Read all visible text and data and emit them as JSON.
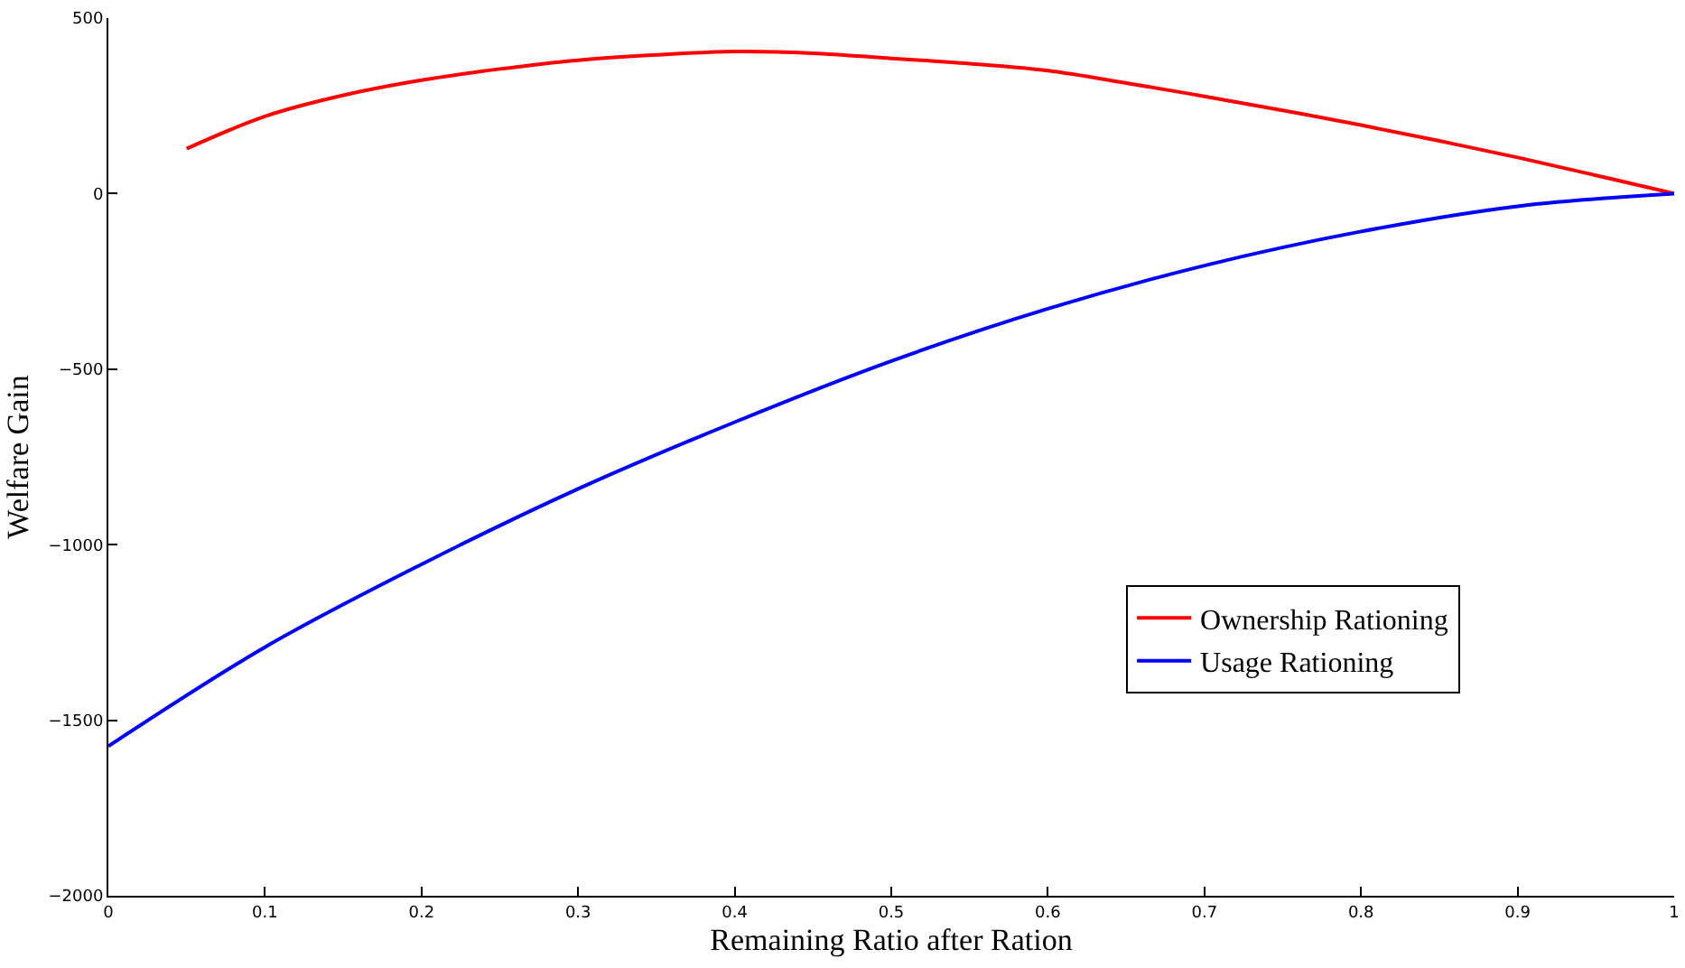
{
  "chart_data": {
    "type": "line",
    "xlabel": "Remaining Ratio after Ration",
    "ylabel": "Welfare Gain",
    "xlim": [
      0,
      1
    ],
    "ylim": [
      -2000,
      500
    ],
    "xticks": [
      0,
      0.1,
      0.2,
      0.3,
      0.4,
      0.5,
      0.6,
      0.7,
      0.8,
      0.9,
      1
    ],
    "yticks": [
      {
        "value": -2000,
        "label": "−2000"
      },
      {
        "value": -1500,
        "label": "−1500"
      },
      {
        "value": -1000,
        "label": "−1000"
      },
      {
        "value": -500,
        "label": "−500"
      },
      0,
      500
    ],
    "legend": "bottom right",
    "marker": "none",
    "line_style": "solid",
    "series": [
      {
        "name": "Ownership Rationing",
        "color": "#ff0000",
        "x": [
          0.05,
          0.1,
          0.15,
          0.2,
          0.25,
          0.3,
          0.35,
          0.4,
          0.45,
          0.5,
          0.55,
          0.6,
          0.65,
          0.7,
          0.75,
          0.8,
          0.85,
          0.9,
          0.95,
          1
        ],
        "values": [
          128,
          220,
          280,
          323,
          355,
          380,
          395,
          405,
          400,
          385,
          370,
          350,
          315,
          277,
          237,
          195,
          150,
          103,
          52,
          0
        ]
      },
      {
        "name": "Usage Rationing",
        "color": "#0000ff",
        "x": [
          0,
          0.1,
          0.2,
          0.3,
          0.4,
          0.5,
          0.6,
          0.7,
          0.8,
          0.9,
          1
        ],
        "values": [
          -1574,
          -1292,
          -1056,
          -841,
          -651,
          -477,
          -328,
          -205,
          -108,
          -36,
          0
        ]
      }
    ]
  }
}
